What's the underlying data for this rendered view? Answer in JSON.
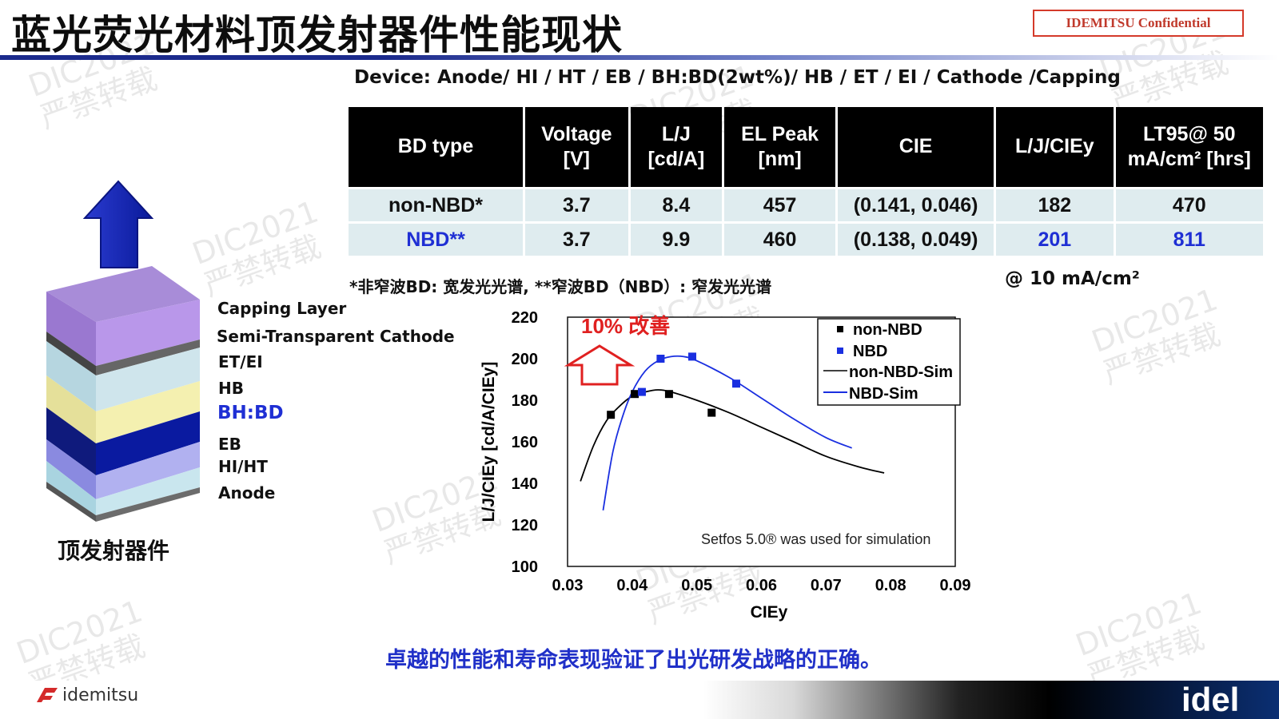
{
  "title": "蓝光荧光材料顶发射器件性能现状",
  "confidential": "IDEMITSU Confidential",
  "device_line": "Device: Anode/ HI / HT / EB / BH:BD(2wt%)/ HB / ET / EI / Cathode /Capping",
  "table": {
    "headers": [
      "BD type",
      "Voltage [V]",
      "L/J [cd/A]",
      "EL Peak [nm]",
      "CIE",
      "L/J/CIEy",
      "LT95@ 50 mA/cm² [hrs]"
    ],
    "rows": [
      [
        "non-NBD*",
        "3.7",
        "8.4",
        "457",
        "(0.141, 0.046)",
        "182",
        "470"
      ],
      [
        "NBD**",
        "3.7",
        "9.9",
        "460",
        "(0.138, 0.049)",
        "201",
        "811"
      ]
    ]
  },
  "footnote": "*非窄波BD: 宽发光光谱, **窄波BD（NBD）: 窄发光光谱",
  "condition": "@ 10 mA/cm²",
  "stack": {
    "layers": [
      "Capping Layer",
      "Semi-Transparent Cathode",
      "ET/EI",
      "HB",
      "BH:BD",
      "EB",
      "HI/HT",
      "Anode"
    ],
    "caption": "顶发射器件"
  },
  "chart_data": {
    "type": "scatter",
    "xlabel": "CIEy",
    "ylabel": "L/J/CIEy [cd/A/CIEy]",
    "xlim": [
      0.03,
      0.09
    ],
    "ylim": [
      100,
      220
    ],
    "xticks": [
      "0.03",
      "0.04",
      "0.05",
      "0.06",
      "0.07",
      "0.08",
      "0.09"
    ],
    "yticks": [
      "100",
      "120",
      "140",
      "160",
      "180",
      "200",
      "220"
    ],
    "annotation": "10% 改善",
    "sim_note": "Setfos 5.0® was used for simulation",
    "legend_position": "top-right",
    "series": [
      {
        "name": "non-NBD",
        "kind": "points",
        "color": "#000000",
        "points": [
          [
            0.0367,
            173
          ],
          [
            0.0404,
            183
          ],
          [
            0.0457,
            183
          ],
          [
            0.0523,
            174
          ]
        ]
      },
      {
        "name": "NBD",
        "kind": "points",
        "color": "#1a2fe0",
        "points": [
          [
            0.0415,
            184
          ],
          [
            0.0444,
            200
          ],
          [
            0.0493,
            201
          ],
          [
            0.0561,
            188
          ]
        ]
      },
      {
        "name": "non-NBD-Sim",
        "kind": "line",
        "color": "#000000",
        "points": [
          [
            0.032,
            141
          ],
          [
            0.034,
            158
          ],
          [
            0.036,
            170
          ],
          [
            0.038,
            177
          ],
          [
            0.04,
            182
          ],
          [
            0.042,
            184
          ],
          [
            0.044,
            185
          ],
          [
            0.046,
            184
          ],
          [
            0.05,
            180
          ],
          [
            0.055,
            174
          ],
          [
            0.06,
            167
          ],
          [
            0.065,
            160
          ],
          [
            0.07,
            153
          ],
          [
            0.075,
            148
          ],
          [
            0.079,
            145
          ]
        ]
      },
      {
        "name": "NBD-Sim",
        "kind": "line",
        "color": "#1a2fe0",
        "points": [
          [
            0.0355,
            127
          ],
          [
            0.037,
            155
          ],
          [
            0.0385,
            172
          ],
          [
            0.04,
            184
          ],
          [
            0.042,
            194
          ],
          [
            0.044,
            199
          ],
          [
            0.046,
            201
          ],
          [
            0.048,
            201
          ],
          [
            0.05,
            199
          ],
          [
            0.055,
            191
          ],
          [
            0.06,
            181
          ],
          [
            0.065,
            171
          ],
          [
            0.07,
            162
          ],
          [
            0.074,
            157
          ]
        ]
      }
    ]
  },
  "conclusion": "卓越的性能和寿命表现验证了出光研发战略的正确。",
  "footer": {
    "logo_text": "idemitsu",
    "brand": "idel"
  },
  "watermark": {
    "line1": "DIC2021",
    "line2": "严禁转载"
  },
  "colors": {
    "title_rule": "#1b2a8c",
    "accent_blue": "#1f2fd4",
    "annotation_red": "#e02020",
    "table_row_bg": "#dfecef"
  }
}
